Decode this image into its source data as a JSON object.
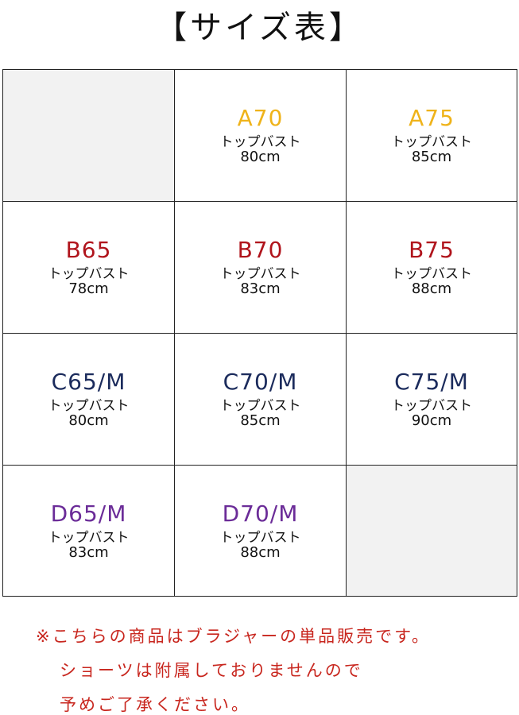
{
  "title": "【サイズ表】",
  "table": {
    "rows": [
      [
        null,
        {
          "size": "A70",
          "color": "#efb31a",
          "label": "トップバスト",
          "value": "80cm"
        },
        {
          "size": "A75",
          "color": "#efb31a",
          "label": "トップバスト",
          "value": "85cm"
        }
      ],
      [
        {
          "size": "B65",
          "color": "#b0141c",
          "label": "トップバスト",
          "value": "78cm"
        },
        {
          "size": "B70",
          "color": "#b0141c",
          "label": "トップバスト",
          "value": "83cm"
        },
        {
          "size": "B75",
          "color": "#b0141c",
          "label": "トップバスト",
          "value": "88cm"
        }
      ],
      [
        {
          "size": "C65/M",
          "color": "#1b2b5c",
          "label": "トップバスト",
          "value": "80cm"
        },
        {
          "size": "C70/M",
          "color": "#1b2b5c",
          "label": "トップバスト",
          "value": "85cm"
        },
        {
          "size": "C75/M",
          "color": "#1b2b5c",
          "label": "トップバスト",
          "value": "90cm"
        }
      ],
      [
        {
          "size": "D65/M",
          "color": "#6b2c98",
          "label": "トップバスト",
          "value": "83cm"
        },
        {
          "size": "D70/M",
          "color": "#6b2c98",
          "label": "トップバスト",
          "value": "88cm"
        },
        null
      ]
    ]
  },
  "notes": [
    "※こちらの商品はブラジャーの単品販売です。",
    "ショーツは附属しておりませんので",
    "予めご了承ください。"
  ]
}
